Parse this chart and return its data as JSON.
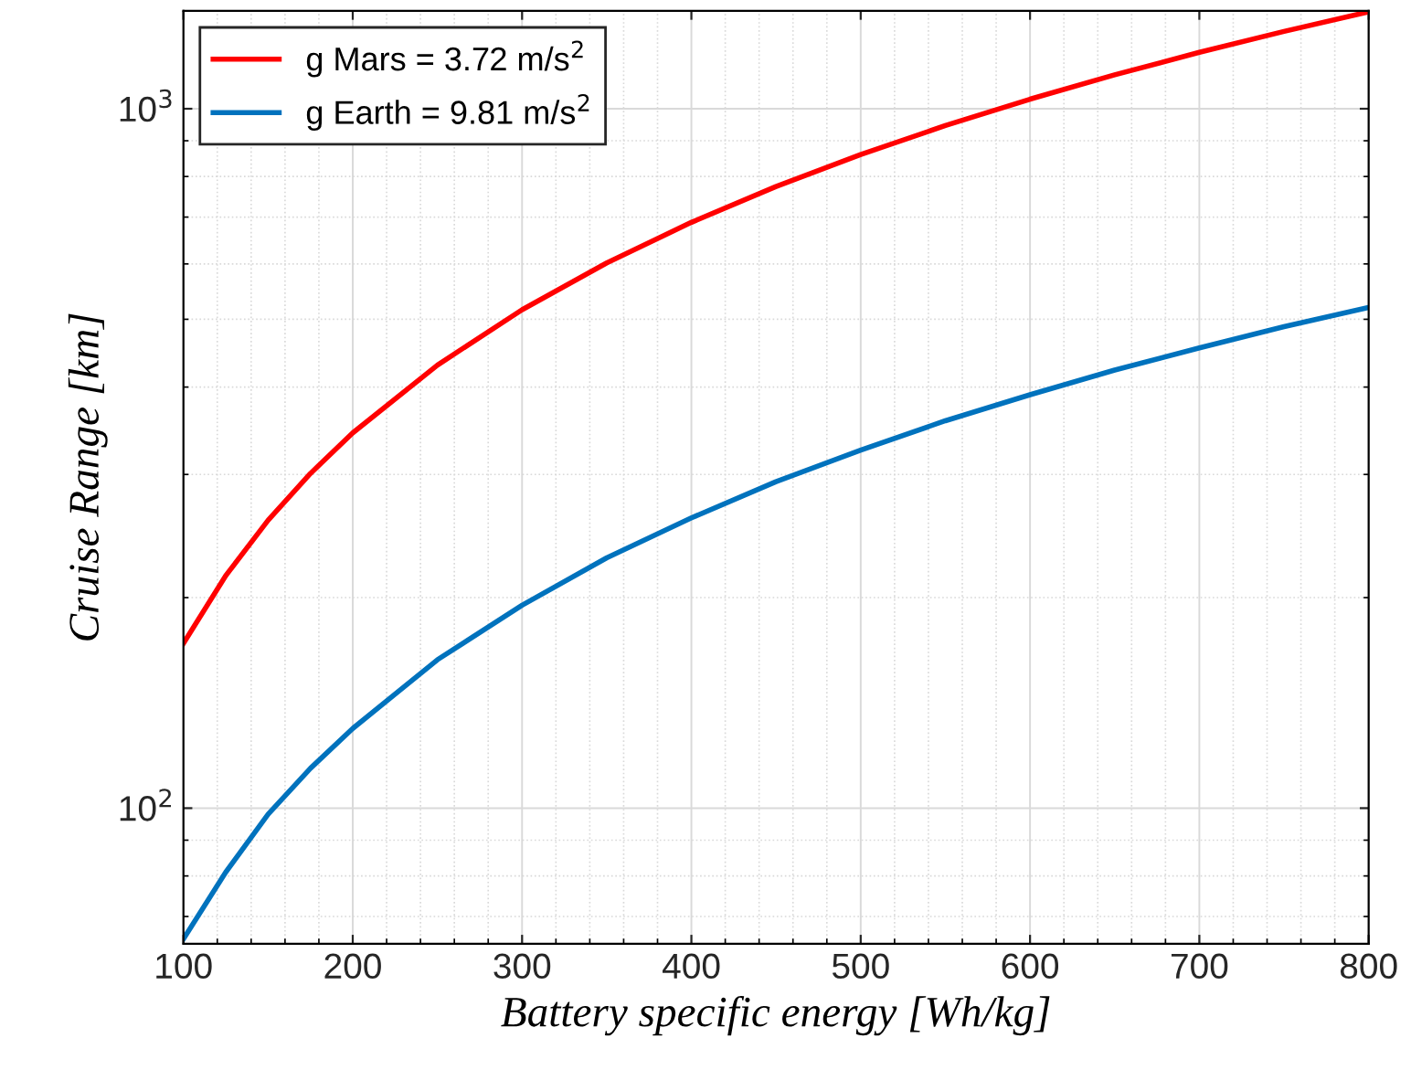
{
  "chart_data": {
    "type": "line",
    "xlabel": "Battery specific energy [Wh/kg]",
    "ylabel": "Cruise Range [km]",
    "x": [
      100,
      125,
      150,
      175,
      200,
      250,
      300,
      350,
      400,
      450,
      500,
      550,
      600,
      650,
      700,
      750,
      800
    ],
    "series": [
      {
        "name": "g Mars = 3.72 m/s$^{2}$",
        "color": "#ff0000",
        "values": [
          172,
          215,
          258,
          301,
          344,
          430,
          516,
          602,
          688,
          774,
          860,
          946,
          1032,
          1118,
          1204,
          1290,
          1376
        ]
      },
      {
        "name": "g Earth = 9.81 m/s$^{2}$",
        "color": "#0072bd",
        "values": [
          65,
          81,
          98,
          114,
          130,
          163,
          195,
          228,
          260,
          293,
          325,
          358,
          390,
          423,
          455,
          488,
          520
        ]
      }
    ],
    "log": "y",
    "xlim": [
      100,
      800
    ],
    "ylim": [
      64,
      1380
    ],
    "xticks": [
      100,
      200,
      300,
      400,
      500,
      600,
      700,
      800
    ],
    "yticks": [
      {
        "value": 100,
        "label": "10$^{2}$"
      },
      {
        "value": 1000,
        "label": "10$^{3}$"
      }
    ],
    "grid": true,
    "legend": "top left",
    "line_style": "solid",
    "marker": "none"
  }
}
